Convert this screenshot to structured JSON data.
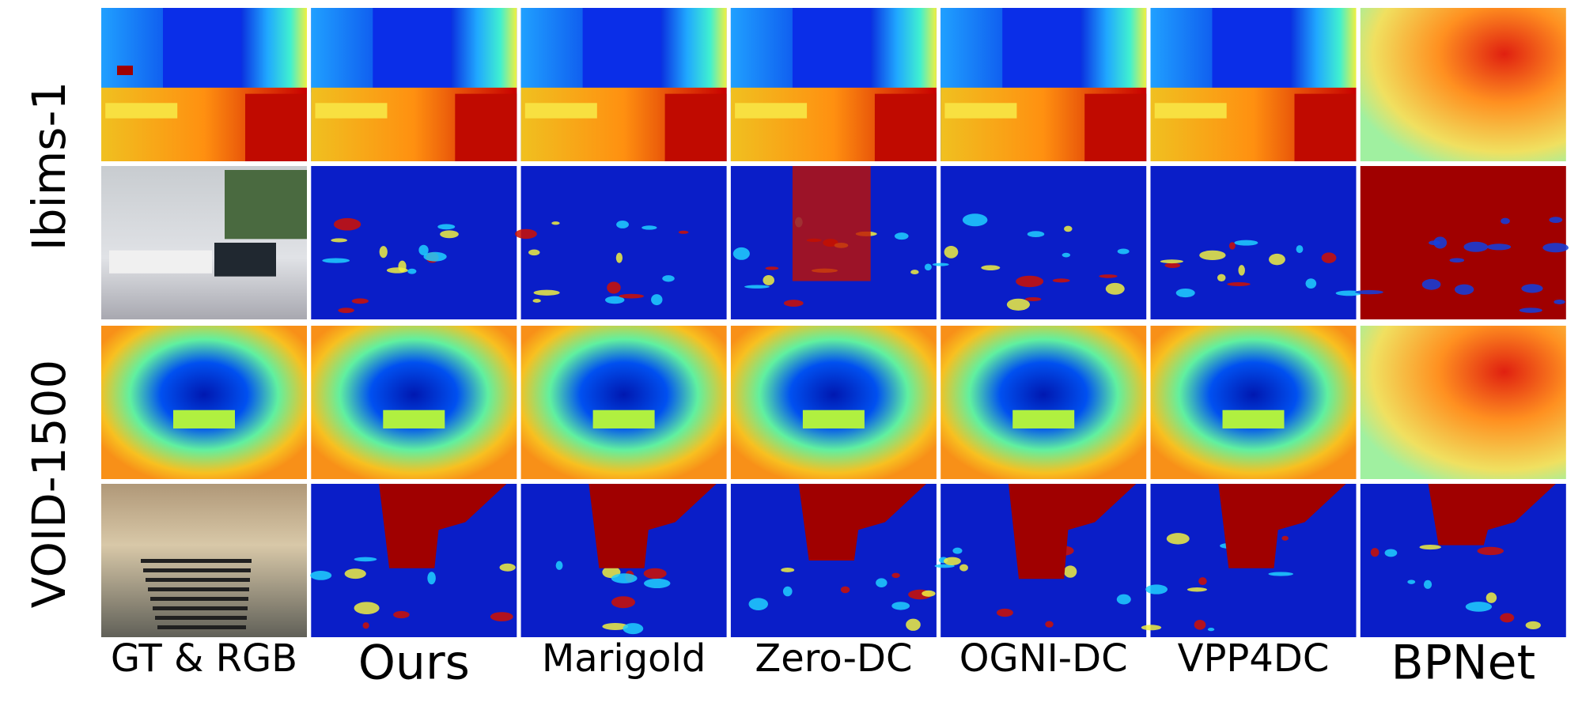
{
  "row_labels": [
    "Ibims-1",
    "VOID-1500"
  ],
  "column_labels": [
    "GT & RGB",
    "Ours",
    "Marigold",
    "Zero-DC",
    "OGNI-DC",
    "VPP4DC",
    "BPNet"
  ]
}
